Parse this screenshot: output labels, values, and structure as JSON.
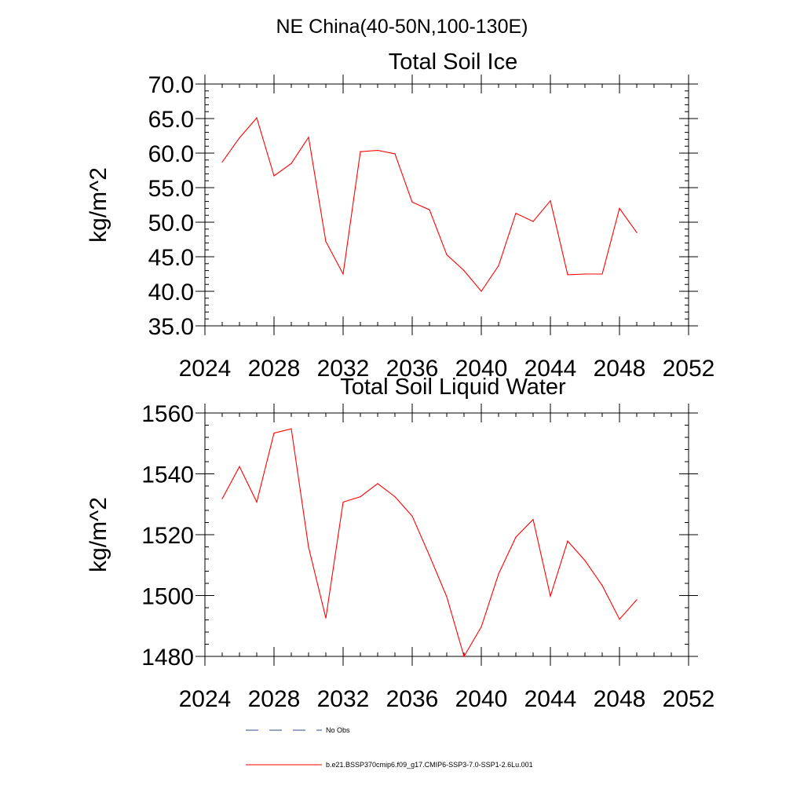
{
  "figure_title": "NE China(40-50N,100-130E)",
  "legend": [
    {
      "label": "No Obs",
      "color": "#3a4a8c",
      "style": "dashed"
    },
    {
      "label": "b.e21.BSSP370cmip6.f09_g17.CMIP6-SSP3-7.0-SSP1-2.6Lu.001",
      "color": "#ff0000",
      "style": "solid"
    }
  ],
  "chart_data": [
    {
      "type": "line",
      "title": "Total Soil Ice",
      "xlabel": "",
      "ylabel": "kg/m^2",
      "xlim": [
        2024,
        2052
      ],
      "ylim": [
        35,
        70
      ],
      "x_ticks": [
        2024,
        2028,
        2032,
        2036,
        2040,
        2044,
        2048,
        2052
      ],
      "y_ticks": [
        35,
        40,
        45,
        50,
        55,
        60,
        65,
        70
      ],
      "y_tick_format": 1,
      "x": [
        2025,
        2026,
        2027,
        2028,
        2029,
        2030,
        2031,
        2032,
        2033,
        2034,
        2035,
        2036,
        2037,
        2038,
        2039,
        2040,
        2041,
        2042,
        2043,
        2044,
        2045,
        2046,
        2047,
        2048,
        2049
      ],
      "series": [
        {
          "color": "#ff0000",
          "values": [
            58.7,
            62.2,
            65.1,
            56.7,
            58.5,
            62.3,
            47.2,
            42.5,
            60.2,
            60.4,
            59.9,
            52.9,
            51.8,
            45.3,
            43.0,
            40.0,
            43.7,
            51.3,
            50.1,
            53.1,
            42.4,
            42.5,
            42.5,
            52.0,
            48.5
          ]
        }
      ]
    },
    {
      "type": "line",
      "title": "Total Soil Liquid Water",
      "xlabel": "",
      "ylabel": "kg/m^2",
      "xlim": [
        2024,
        2052
      ],
      "ylim": [
        1480,
        1560
      ],
      "x_ticks": [
        2024,
        2028,
        2032,
        2036,
        2040,
        2044,
        2048,
        2052
      ],
      "y_ticks": [
        1480,
        1500,
        1520,
        1540,
        1560
      ],
      "y_tick_format": 0,
      "x": [
        2025,
        2026,
        2027,
        2028,
        2029,
        2030,
        2031,
        2032,
        2033,
        2034,
        2035,
        2036,
        2037,
        2038,
        2039,
        2040,
        2041,
        2042,
        2043,
        2044,
        2045,
        2046,
        2047,
        2048,
        2049
      ],
      "series": [
        {
          "color": "#ff0000",
          "values": [
            1531.8,
            1542.4,
            1530.7,
            1553.4,
            1554.8,
            1515.9,
            1492.6,
            1530.7,
            1532.5,
            1536.8,
            1532.5,
            1526.1,
            1513.1,
            1499.6,
            1480.0,
            1489.7,
            1507.1,
            1519.2,
            1525.0,
            1499.8,
            1517.9,
            1511.5,
            1503.3,
            1492.2,
            1498.6
          ]
        }
      ]
    }
  ]
}
